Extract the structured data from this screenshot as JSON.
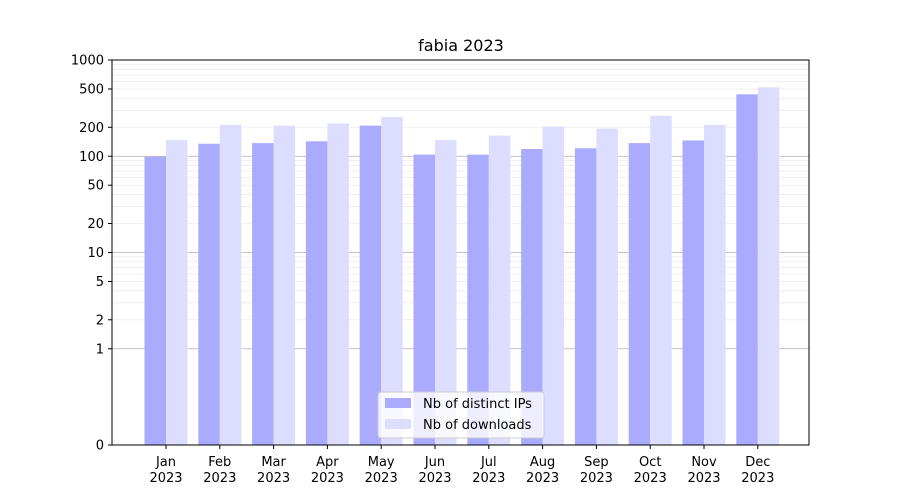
{
  "chart_data": {
    "type": "bar",
    "title": "fabia 2023",
    "xlabel": "",
    "ylabel": "",
    "y_scale": "symlog",
    "ylim": [
      0,
      1000
    ],
    "y_ticks": [
      {
        "value": 0,
        "label": "0"
      },
      {
        "value": 1,
        "label": "1"
      },
      {
        "value": 2,
        "label": "2"
      },
      {
        "value": 5,
        "label": "5"
      },
      {
        "value": 10,
        "label": "10"
      },
      {
        "value": 20,
        "label": "20"
      },
      {
        "value": 50,
        "label": "50"
      },
      {
        "value": 100,
        "label": "100"
      },
      {
        "value": 200,
        "label": "200"
      },
      {
        "value": 500,
        "label": "500"
      },
      {
        "value": 1000,
        "label": "1000"
      }
    ],
    "categories": [
      {
        "month": "Jan",
        "year": "2023"
      },
      {
        "month": "Feb",
        "year": "2023"
      },
      {
        "month": "Mar",
        "year": "2023"
      },
      {
        "month": "Apr",
        "year": "2023"
      },
      {
        "month": "May",
        "year": "2023"
      },
      {
        "month": "Jun",
        "year": "2023"
      },
      {
        "month": "Jul",
        "year": "2023"
      },
      {
        "month": "Aug",
        "year": "2023"
      },
      {
        "month": "Sep",
        "year": "2023"
      },
      {
        "month": "Oct",
        "year": "2023"
      },
      {
        "month": "Nov",
        "year": "2023"
      },
      {
        "month": "Dec",
        "year": "2023"
      }
    ],
    "series": [
      {
        "name": "Nb of distinct IPs",
        "color": "#aaaaff",
        "values": [
          99,
          135,
          137,
          143,
          208,
          104,
          104,
          119,
          121,
          137,
          146,
          440
        ]
      },
      {
        "name": "Nb of downloads",
        "color": "#ddddff",
        "values": [
          147,
          212,
          208,
          219,
          255,
          147,
          164,
          203,
          194,
          263,
          212,
          520
        ]
      }
    ],
    "grid": true,
    "legend_position": "lower-center"
  }
}
